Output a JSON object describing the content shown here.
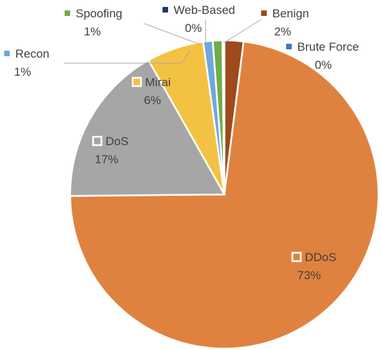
{
  "chart_data": {
    "type": "pie",
    "title": "",
    "legend": "data-labels",
    "slices": [
      {
        "name": "DDoS",
        "value": 73,
        "label": "73%",
        "color": "#E0823F"
      },
      {
        "name": "DoS",
        "value": 17,
        "label": "17%",
        "color": "#A6A6A6"
      },
      {
        "name": "Mirai",
        "value": 6,
        "label": "6%",
        "color": "#F4C242"
      },
      {
        "name": "Recon",
        "value": 1,
        "label": "1%",
        "color": "#6FA8DC"
      },
      {
        "name": "Spoofing",
        "value": 1,
        "label": "1%",
        "color": "#70AD47"
      },
      {
        "name": "Web-Based",
        "value": 0.1,
        "label": "0%",
        "color": "#1F3864"
      },
      {
        "name": "Brute Force",
        "value": 0.1,
        "label": "0%",
        "color": "#4472C4"
      },
      {
        "name": "Benign",
        "value": 2,
        "label": "2%",
        "color": "#9E4A1E"
      }
    ]
  }
}
